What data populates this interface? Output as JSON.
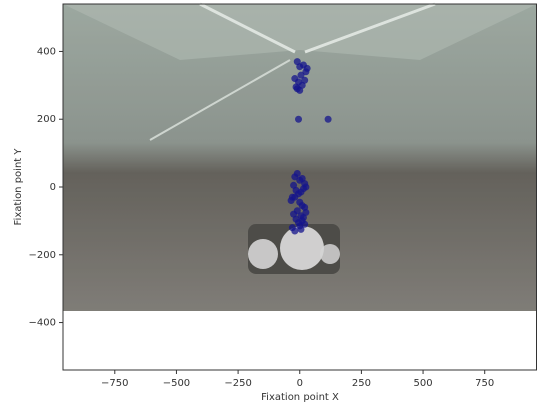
{
  "chart_data": {
    "type": "scatter",
    "xlabel": "Fixation point X",
    "ylabel": "Fixation point Y",
    "xlim": [
      -960,
      960
    ],
    "ylim": [
      -540,
      540
    ],
    "xticks": [
      {
        "value": -750,
        "label": "−750"
      },
      {
        "value": -500,
        "label": "−500"
      },
      {
        "value": -250,
        "label": "−250"
      },
      0,
      250,
      500,
      750
    ],
    "yticks": [
      {
        "value": -400,
        "label": "−400"
      },
      {
        "value": -200,
        "label": "−200"
      },
      0,
      200,
      400
    ],
    "color": "#14148c",
    "x": [
      -10,
      0,
      15,
      25,
      5,
      -20,
      -5,
      10,
      30,
      -15,
      20,
      0,
      -10,
      -5,
      115,
      -30,
      -20,
      -10,
      0,
      10,
      20,
      25,
      -25,
      -15,
      -5,
      5,
      15,
      -35,
      -20,
      0,
      10,
      20,
      -10,
      -25,
      5,
      15,
      25,
      -15,
      -5,
      10,
      0,
      -30,
      20,
      -20,
      5
    ],
    "values": [
      370,
      355,
      360,
      340,
      330,
      320,
      310,
      300,
      350,
      295,
      315,
      285,
      290,
      200,
      200,
      -30,
      30,
      40,
      20,
      25,
      10,
      0,
      5,
      -10,
      -20,
      -15,
      -5,
      -40,
      -30,
      -45,
      -55,
      -60,
      -70,
      -80,
      -85,
      -90,
      -75,
      -95,
      -105,
      -100,
      -115,
      -120,
      -110,
      -130,
      -125
    ]
  }
}
